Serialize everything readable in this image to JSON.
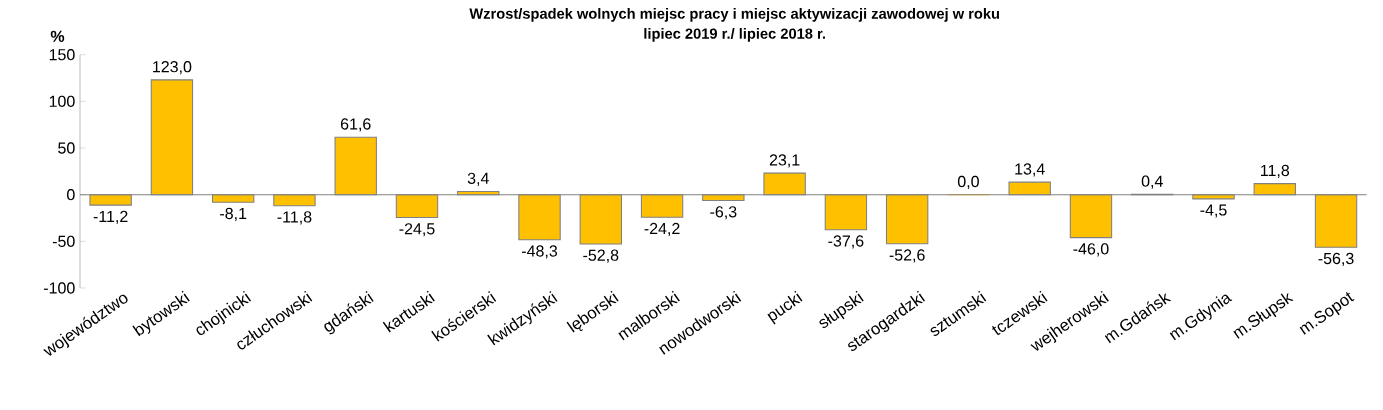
{
  "chart_data": {
    "type": "bar",
    "title": "Wzrost/spadek wolnych miejsc pracy i miejsc aktywizacji zawodowej w roku",
    "subtitle": "lipiec 2019 r./ lipiec 2018 r.",
    "ylabel": "%",
    "categories": [
      "województwo",
      "bytowski",
      "chojnicki",
      "człuchowski",
      "gdański",
      "kartuski",
      "kościerski",
      "kwidzyński",
      "lęborski",
      "malborski",
      "nowodworski",
      "pucki",
      "słupski",
      "starogardzki",
      "sztumski",
      "tczewski",
      "wejherowski",
      "m.Gdańsk",
      "m.Gdynia",
      "m.Słupsk",
      "m.Sopot"
    ],
    "values": [
      -11.2,
      123.0,
      -8.1,
      -11.8,
      61.6,
      -24.5,
      3.4,
      -48.3,
      -52.8,
      -24.2,
      -6.3,
      23.1,
      -37.6,
      -52.6,
      0.0,
      13.4,
      -46.0,
      0.4,
      -4.5,
      11.8,
      -56.3
    ],
    "value_labels": [
      "-11,2",
      "123,0",
      "-8,1",
      "-11,8",
      "61,6",
      "-24,5",
      "3,4",
      "-48,3",
      "-52,8",
      "-24,2",
      "-6,3",
      "23,1",
      "-37,6",
      "-52,6",
      "0,0",
      "13,4",
      "-46,0",
      "0,4",
      "-4,5",
      "11,8",
      "-56,3"
    ],
    "color": "#ffc000",
    "ylim": [
      -100,
      150
    ],
    "yticks": [
      -100,
      -50,
      0,
      50,
      100,
      150
    ]
  }
}
